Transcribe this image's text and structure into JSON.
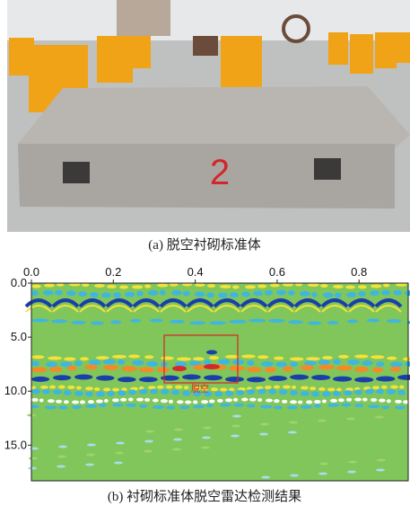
{
  "figure": {
    "caption_a": "(a) 脱空衬砌标准体",
    "caption_b": "(b) 衬砌标准体脱空雷达检测结果",
    "photo_marking": "2",
    "radargram": {
      "xlim": [
        0,
        0.92
      ],
      "ylim": [
        0,
        18.3
      ],
      "xticks": [
        {
          "value": 0,
          "label": "0.0"
        },
        0.2,
        0.4,
        0.6,
        0.8
      ],
      "yticks": [
        {
          "value": 0,
          "label": "0.0"
        },
        {
          "value": 5,
          "label": "5.0"
        },
        {
          "value": 10,
          "label": "10.0"
        },
        {
          "value": 15,
          "label": "15.0"
        }
      ],
      "annotation": "脱空"
    }
  }
}
